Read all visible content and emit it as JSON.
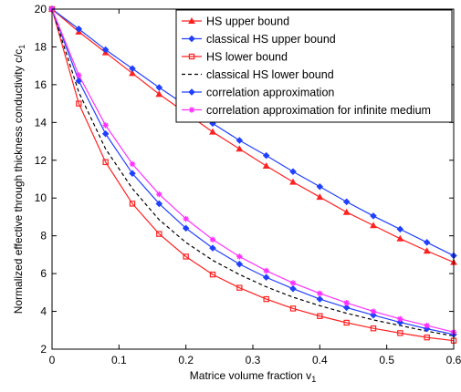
{
  "chart_data": {
    "type": "line",
    "title": "",
    "xlabel": "Matrice volume fraction v",
    "xlabel_sub": "1",
    "ylabel": "Normalized effective through thickness conductivity c/c",
    "ylabel_sub": "1",
    "xlim": [
      0,
      0.6
    ],
    "ylim": [
      2,
      20
    ],
    "xticks": [
      0,
      0.1,
      0.2,
      0.3,
      0.4,
      0.5,
      0.6
    ],
    "xtick_labels": [
      "0",
      "0.1",
      "0.2",
      "0.3",
      "0.4",
      "0.5",
      "0.6"
    ],
    "yticks": [
      2,
      4,
      6,
      8,
      10,
      12,
      14,
      16,
      18,
      20
    ],
    "ytick_labels": [
      "2",
      "4",
      "6",
      "8",
      "10",
      "12",
      "14",
      "16",
      "18",
      "20"
    ],
    "grid": false,
    "legend_position": "top-right",
    "x": [
      0,
      0.04,
      0.08,
      0.12,
      0.16,
      0.2,
      0.24,
      0.28,
      0.32,
      0.36,
      0.4,
      0.44,
      0.48,
      0.52,
      0.56,
      0.6
    ],
    "series": [
      {
        "name": "HS upper bound",
        "color": "#ff2020",
        "marker": "triangle",
        "dash": "solid",
        "values": [
          20,
          18.8,
          17.7,
          16.6,
          15.5,
          14.5,
          13.5,
          12.6,
          11.7,
          10.85,
          10.05,
          9.25,
          8.55,
          7.85,
          7.2,
          6.6
        ]
      },
      {
        "name": "classical HS upper bound",
        "color": "#2040ff",
        "marker": "diamond",
        "dash": "solid",
        "values": [
          20,
          18.95,
          17.85,
          16.85,
          15.85,
          14.9,
          13.95,
          13.05,
          12.25,
          11.4,
          10.6,
          9.8,
          9.05,
          8.35,
          7.65,
          6.95
        ]
      },
      {
        "name": "HS lower bound",
        "color": "#ff2020",
        "marker": "square",
        "dash": "solid",
        "values": [
          20,
          15.0,
          11.9,
          9.7,
          8.1,
          6.9,
          5.95,
          5.25,
          4.65,
          4.15,
          3.75,
          3.4,
          3.1,
          2.85,
          2.62,
          2.45
        ]
      },
      {
        "name": "classical HS lower bound",
        "color": "#000000",
        "marker": "none",
        "dash": "dashed",
        "values": [
          20,
          15.6,
          12.6,
          10.5,
          8.85,
          7.65,
          6.7,
          5.95,
          5.3,
          4.75,
          4.3,
          3.9,
          3.55,
          3.25,
          2.95,
          2.7
        ]
      },
      {
        "name": "correlation approximation",
        "color": "#2040ff",
        "marker": "diamond",
        "dash": "solid",
        "values": [
          20,
          16.2,
          13.4,
          11.3,
          9.7,
          8.4,
          7.35,
          6.5,
          5.8,
          5.2,
          4.65,
          4.2,
          3.8,
          3.42,
          3.08,
          2.78
        ]
      },
      {
        "name": "correlation approximation for infinite medium",
        "color": "#ff30ff",
        "marker": "star",
        "dash": "solid",
        "values": [
          20,
          16.5,
          13.85,
          11.8,
          10.2,
          8.9,
          7.8,
          6.9,
          6.15,
          5.5,
          4.95,
          4.45,
          4.0,
          3.6,
          3.25,
          2.9
        ]
      }
    ]
  }
}
